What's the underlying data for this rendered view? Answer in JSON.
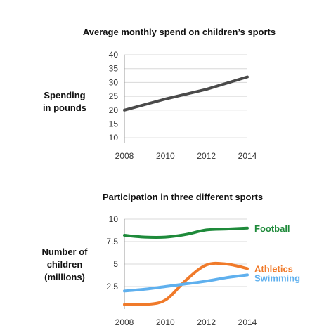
{
  "chart_data": [
    {
      "type": "line",
      "title": "Average monthly spend on children’s sports",
      "ylabel": [
        "Spending",
        "in pounds"
      ],
      "x": [
        2008,
        2010,
        2012,
        2014
      ],
      "xticks": [
        "2008",
        "2010",
        "2012",
        "2014"
      ],
      "yticks": [
        "10",
        "15",
        "20",
        "25",
        "30",
        "35",
        "40"
      ],
      "ylim": [
        8,
        40
      ],
      "grid": true,
      "series": [
        {
          "color": "#4a4a4a",
          "points": [
            [
              2008,
              20
            ],
            [
              2010,
              24
            ],
            [
              2012,
              27.5
            ],
            [
              2014,
              32
            ]
          ]
        }
      ]
    },
    {
      "type": "line",
      "title": "Participation in three different sports",
      "ylabel": [
        "Number of",
        "children",
        "(millions)"
      ],
      "x": [
        2008,
        2010,
        2012,
        2014
      ],
      "xticks": [
        "2008",
        "2010",
        "2012",
        "2014"
      ],
      "yticks": [
        "2.5",
        "5",
        "7.5",
        "10"
      ],
      "ylim": [
        0,
        10
      ],
      "grid": true,
      "series": [
        {
          "name": "Football",
          "color": "#1e8a3a",
          "points": [
            [
              2008,
              8.2
            ],
            [
              2009,
              8.0
            ],
            [
              2010,
              8.0
            ],
            [
              2011,
              8.3
            ],
            [
              2012,
              8.8
            ],
            [
              2013,
              8.9
            ],
            [
              2014,
              9.0
            ]
          ]
        },
        {
          "name": "Athletics",
          "color": "#f07a2a",
          "points": [
            [
              2008,
              0.5
            ],
            [
              2009,
              0.5
            ],
            [
              2010,
              1.0
            ],
            [
              2011,
              3.2
            ],
            [
              2012,
              4.9
            ],
            [
              2013,
              5.0
            ],
            [
              2014,
              4.5
            ]
          ]
        },
        {
          "name": "Swimming",
          "color": "#5fb0ee",
          "points": [
            [
              2008,
              2.0
            ],
            [
              2009,
              2.2
            ],
            [
              2010,
              2.5
            ],
            [
              2011,
              2.8
            ],
            [
              2012,
              3.1
            ],
            [
              2013,
              3.5
            ],
            [
              2014,
              3.8
            ]
          ]
        }
      ]
    }
  ]
}
